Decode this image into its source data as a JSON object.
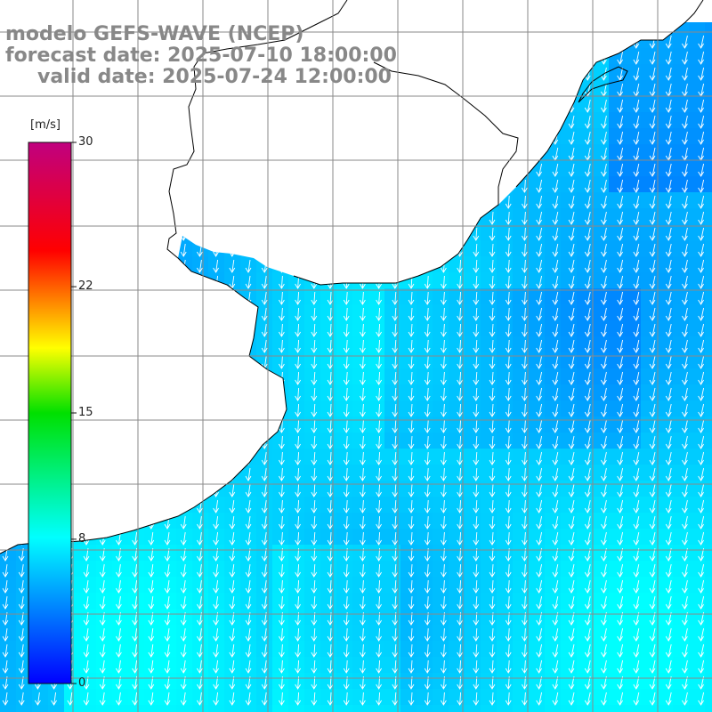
{
  "title": {
    "line1": "modelo GEFS-WAVE (NCEP)",
    "line2": "forecast date: 2025-07-10 18:00:00",
    "line3": "valid date: 2025-07-24 12:00:00"
  },
  "colorbar": {
    "unit": "[m/s]",
    "min": 0,
    "max": 30,
    "ticks": [
      {
        "value": 30,
        "label": "30"
      },
      {
        "value": 22,
        "label": "22"
      },
      {
        "value": 15,
        "label": "15"
      },
      {
        "value": 8,
        "label": "8"
      },
      {
        "value": 0,
        "label": "0"
      }
    ],
    "colors": [
      "#0000ff",
      "#00ffff",
      "#00ff00",
      "#ffff00",
      "#ff0000",
      "#c8007a"
    ]
  },
  "map": {
    "field": "wind speed with direction arrows",
    "field_range_ms": [
      4,
      9
    ],
    "predominant_arrow_direction": "north-to-south",
    "land_color": "#ffffff",
    "coastline_color": "#000000",
    "grid_color": "#8a8a8a",
    "arrow_color": "#ffffff"
  }
}
